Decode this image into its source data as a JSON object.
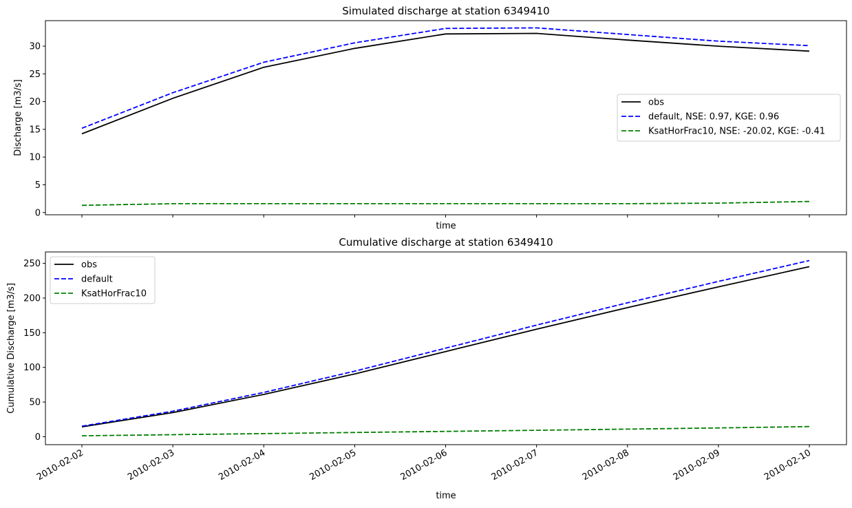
{
  "chart_data": [
    {
      "type": "line",
      "title": "Simulated discharge at station 6349410",
      "xlabel": "time",
      "ylabel": "Discharge [m3/s]",
      "x": [
        "2010-02-02",
        "2010-02-03",
        "2010-02-04",
        "2010-02-05",
        "2010-02-06",
        "2010-02-07",
        "2010-02-08",
        "2010-02-09",
        "2010-02-10"
      ],
      "xticklabels": [],
      "yticks": [
        "0",
        "5",
        "10",
        "15",
        "20",
        "25",
        "30"
      ],
      "ylim": [
        -0.4,
        34.6
      ],
      "grid": false,
      "legend_position": "center-right",
      "series": [
        {
          "name": "obs",
          "color": "#000000",
          "dash": "solid",
          "values": [
            14.2,
            20.6,
            26.2,
            29.6,
            32.2,
            32.3,
            31.1,
            30.0,
            29.1
          ]
        },
        {
          "name": "default, NSE: 0.97, KGE: 0.96",
          "color": "#0000ff",
          "dash": "dashed",
          "values": [
            15.2,
            21.6,
            27.1,
            30.6,
            33.2,
            33.3,
            32.1,
            30.9,
            30.1
          ]
        },
        {
          "name": "KsatHorFrac10, NSE: -20.02, KGE: -0.41",
          "color": "#008000",
          "dash": "dashed",
          "values": [
            1.3,
            1.6,
            1.6,
            1.6,
            1.6,
            1.6,
            1.6,
            1.7,
            2.0
          ]
        }
      ]
    },
    {
      "type": "line",
      "title": "Cumulative discharge at station 6349410",
      "xlabel": "time",
      "ylabel": "Cumulative Discharge [m3/s]",
      "x": [
        "2010-02-02",
        "2010-02-03",
        "2010-02-04",
        "2010-02-05",
        "2010-02-06",
        "2010-02-07",
        "2010-02-08",
        "2010-02-09",
        "2010-02-10"
      ],
      "xticklabels": [
        "2010-02-02",
        "2010-02-03",
        "2010-02-04",
        "2010-02-05",
        "2010-02-06",
        "2010-02-07",
        "2010-02-08",
        "2010-02-09",
        "2010-02-10"
      ],
      "yticks": [
        "0",
        "50",
        "100",
        "150",
        "200",
        "250"
      ],
      "ylim": [
        -11.5,
        266.5
      ],
      "grid": false,
      "legend_position": "upper-left",
      "series": [
        {
          "name": "obs",
          "color": "#000000",
          "dash": "solid",
          "values": [
            14.2,
            34.8,
            61.0,
            90.6,
            122.8,
            155.1,
            186.2,
            216.2,
            245.3
          ]
        },
        {
          "name": "default",
          "color": "#0000ff",
          "dash": "dashed",
          "values": [
            15.2,
            36.8,
            63.9,
            94.5,
            127.7,
            161.0,
            193.1,
            224.0,
            254.1
          ]
        },
        {
          "name": "KsatHorFrac10",
          "color": "#008000",
          "dash": "dashed",
          "values": [
            1.3,
            2.9,
            4.5,
            6.1,
            7.7,
            9.3,
            10.9,
            12.6,
            14.6
          ]
        }
      ]
    }
  ]
}
